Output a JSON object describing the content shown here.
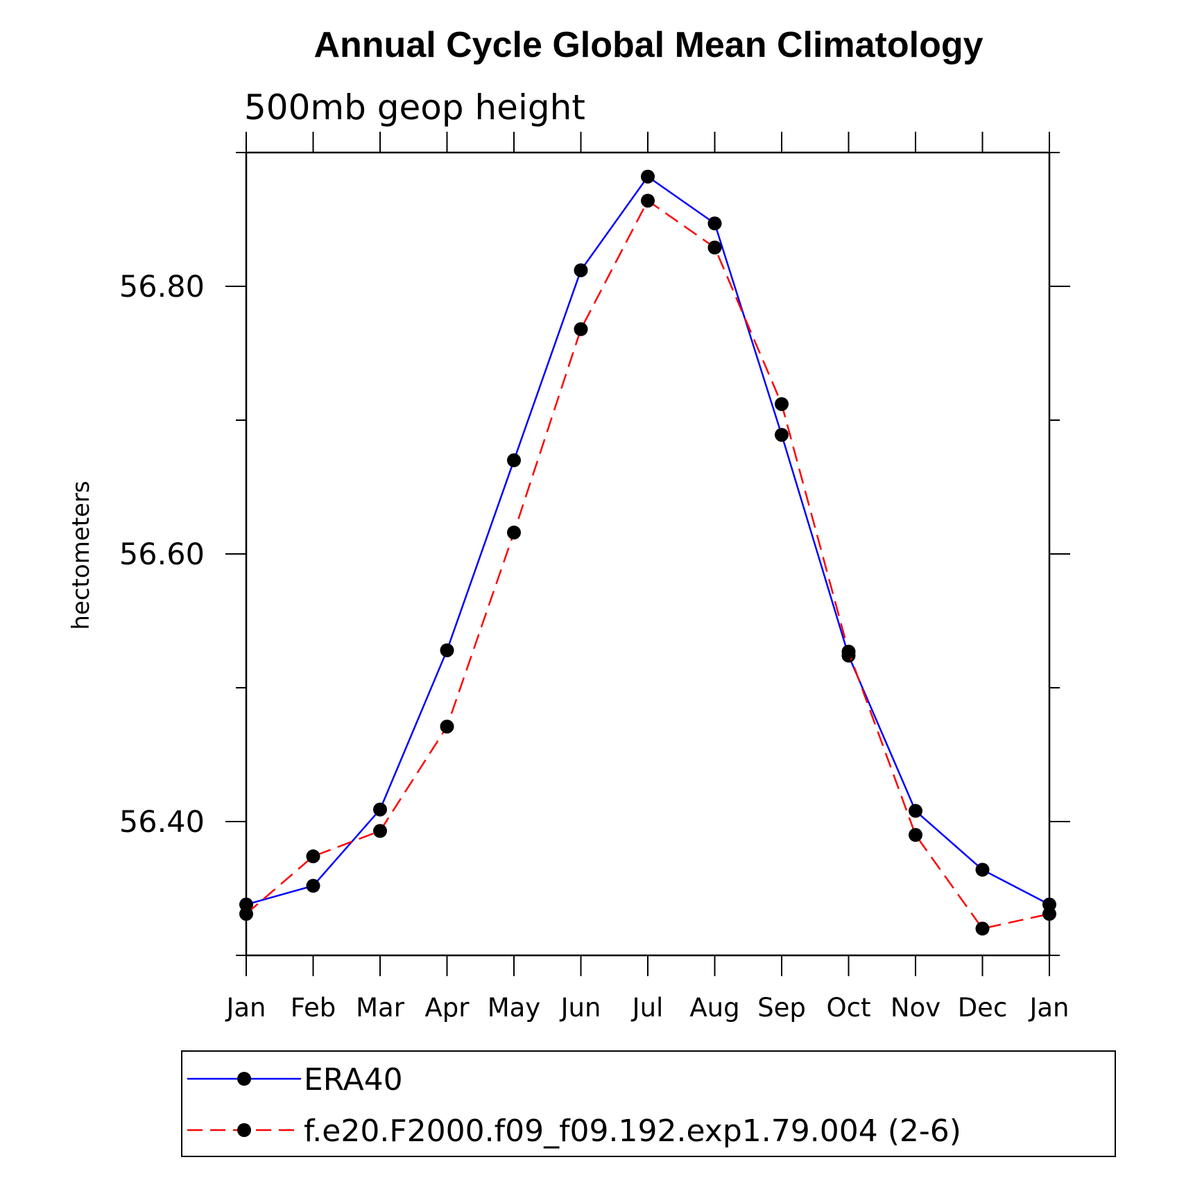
{
  "chart_data": {
    "type": "line",
    "title": "Annual Cycle Global Mean Climatology",
    "subtitle": "500mb geop height",
    "ylabel": "hectometers",
    "xlabel": "",
    "categories": [
      "Jan",
      "Feb",
      "Mar",
      "Apr",
      "May",
      "Jun",
      "Jul",
      "Aug",
      "Sep",
      "Oct",
      "Nov",
      "Dec",
      "Jan"
    ],
    "ylim": [
      56.3,
      56.9
    ],
    "yticks": [
      56.4,
      56.6,
      56.8
    ],
    "ytick_labels": [
      "56.40",
      "56.60",
      "56.80"
    ],
    "grid": false,
    "legend_position": "bottom",
    "series": [
      {
        "name": "ERA40",
        "color": "#0000ff",
        "style": "solid",
        "marker": "filled-circle",
        "values": [
          56.338,
          56.352,
          56.409,
          56.528,
          56.67,
          56.812,
          56.882,
          56.847,
          56.689,
          56.524,
          56.408,
          56.364,
          56.338
        ]
      },
      {
        "name": "f.e20.F2000.f09_f09.192.exp1.79.004 (2-6)",
        "color": "#ff0000",
        "style": "dashed",
        "marker": "filled-circle",
        "values": [
          56.331,
          56.374,
          56.393,
          56.471,
          56.616,
          56.768,
          56.864,
          56.829,
          56.712,
          56.527,
          56.39,
          56.32,
          56.331
        ]
      }
    ]
  }
}
